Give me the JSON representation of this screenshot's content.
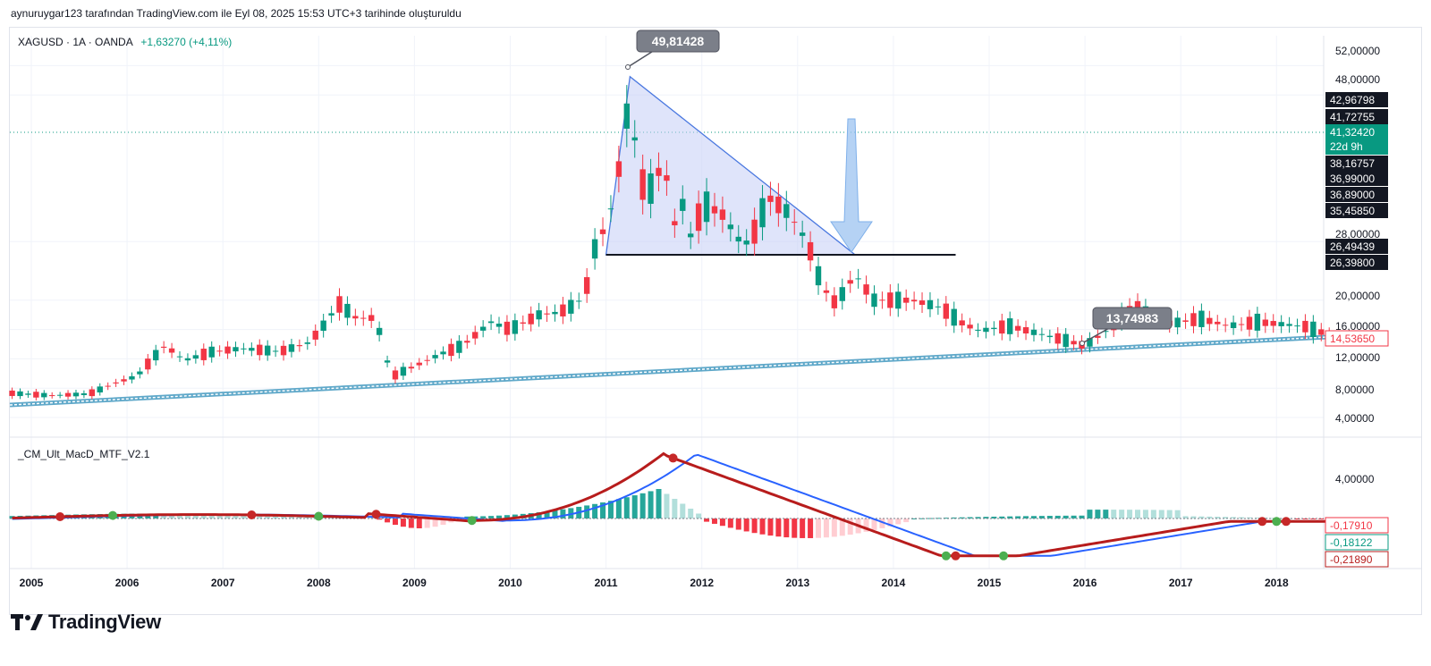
{
  "header": {
    "note": "aynuruygar123 tarafından TradingView.com ile Eyl 08, 2025 15:53 UTC+3 tarihinde oluşturuldu"
  },
  "legend": {
    "symbol": "XAGUSD · 1A · OANDA",
    "change": "+1,63270 (+4,11%)"
  },
  "indicator": {
    "name": "_CM_Ult_MacD_MTF_V2.1"
  },
  "brand": {
    "name": "TradingView"
  },
  "colors": {
    "up": "#089981",
    "down": "#f23645",
    "macd_up": "#4caf50",
    "macd_line": "#2962ff",
    "signal_line": "#b71c1c",
    "triangle_fill": "#c5cdf5",
    "triangle_line": "#4a78e0",
    "channel": "#5fa8c9",
    "arrow": "#9cc3f0"
  },
  "chart_data": [
    {
      "type": "candlestick",
      "title": "XAGUSD · 1A · OANDA",
      "x": [
        "2005",
        "2006",
        "2007",
        "2008",
        "2009",
        "2010",
        "2011",
        "2012",
        "2013",
        "2014",
        "2015",
        "2016",
        "2017",
        "2018"
      ],
      "ylim": [
        2,
        54
      ],
      "price_axis_ticks": [
        "52,00000",
        "48,00000",
        "28,00000",
        "20,00000",
        "16,00000",
        "12,00000",
        "8,00000",
        "4,00000"
      ],
      "price_tags": [
        {
          "label": "42,96798",
          "style": "dark"
        },
        {
          "label": "41,72755",
          "style": "dark"
        },
        {
          "label": "41,32420",
          "sub": "22d 9h",
          "style": "green"
        },
        {
          "label": "38,16757",
          "style": "dark"
        },
        {
          "label": "36,99000",
          "style": "dark"
        },
        {
          "label": "36,89000",
          "style": "dark"
        },
        {
          "label": "35,45850",
          "style": "dark"
        },
        {
          "label": "26,49439",
          "style": "dark"
        },
        {
          "label": "26,39800",
          "style": "dark"
        },
        {
          "label": "14,53650",
          "style": "outline-red"
        }
      ],
      "annotations": [
        {
          "label": "49,81428",
          "note": "high 2011"
        },
        {
          "label": "13,74983",
          "note": "low 2016"
        }
      ],
      "series_path": [
        [
          2004.8,
          7.3
        ],
        [
          2005.2,
          7.0
        ],
        [
          2005.6,
          7.2
        ],
        [
          2005.9,
          8.8
        ],
        [
          2006.1,
          9.6
        ],
        [
          2006.3,
          12.5
        ],
        [
          2006.4,
          13.8
        ],
        [
          2006.6,
          11.8
        ],
        [
          2006.9,
          13.0
        ],
        [
          2007.2,
          13.4
        ],
        [
          2007.6,
          13.0
        ],
        [
          2007.9,
          14.2
        ],
        [
          2008.1,
          17.3
        ],
        [
          2008.2,
          19.6
        ],
        [
          2008.4,
          17.5
        ],
        [
          2008.6,
          17.6
        ],
        [
          2008.7,
          12.0
        ],
        [
          2008.8,
          9.8
        ],
        [
          2009.0,
          11.0
        ],
        [
          2009.3,
          12.8
        ],
        [
          2009.5,
          13.8
        ],
        [
          2009.8,
          17.0
        ],
        [
          2010.0,
          16.0
        ],
        [
          2010.3,
          18.0
        ],
        [
          2010.5,
          18.3
        ],
        [
          2010.7,
          19.5
        ],
        [
          2010.8,
          22.0
        ],
        [
          2010.9,
          28.0
        ],
        [
          2011.0,
          30.0
        ],
        [
          2011.1,
          35.0
        ],
        [
          2011.25,
          48.0
        ],
        [
          2011.35,
          36.0
        ],
        [
          2011.5,
          35.0
        ],
        [
          2011.6,
          40.0
        ],
        [
          2011.7,
          30.0
        ],
        [
          2011.8,
          33.0
        ],
        [
          2011.9,
          28.0
        ],
        [
          2012.0,
          33.0
        ],
        [
          2012.2,
          32.0
        ],
        [
          2012.4,
          28.0
        ],
        [
          2012.5,
          27.8
        ],
        [
          2012.7,
          34.0
        ],
        [
          2012.9,
          32.0
        ],
        [
          2013.0,
          30.0
        ],
        [
          2013.1,
          28.0
        ],
        [
          2013.25,
          22.0
        ],
        [
          2013.4,
          19.5
        ],
        [
          2013.6,
          23.5
        ],
        [
          2013.8,
          20.0
        ],
        [
          2014.0,
          20.0
        ],
        [
          2014.2,
          20.0
        ],
        [
          2014.5,
          19.0
        ],
        [
          2014.7,
          17.0
        ],
        [
          2014.9,
          15.8
        ],
        [
          2015.2,
          16.5
        ],
        [
          2015.5,
          15.5
        ],
        [
          2015.8,
          14.5
        ],
        [
          2016.0,
          13.8
        ],
        [
          2016.3,
          16.5
        ],
        [
          2016.5,
          19.5
        ],
        [
          2016.7,
          17.5
        ],
        [
          2016.9,
          16.8
        ],
        [
          2017.2,
          17.5
        ],
        [
          2017.5,
          16.5
        ],
        [
          2017.8,
          17.0
        ],
        [
          2018.0,
          16.8
        ],
        [
          2018.3,
          16.4
        ],
        [
          2018.5,
          15.5
        ],
        [
          2018.6,
          14.5
        ]
      ]
    },
    {
      "type": "line",
      "title": "_CM_Ult_MacD_MTF_V2.1",
      "ylim": [
        -0.5,
        6
      ],
      "axis_ticks": [
        "4,00000"
      ],
      "value_tags": [
        {
          "label": "-0,17910",
          "style": "outline-red"
        },
        {
          "label": "-0,18122",
          "style": "outline-green"
        },
        {
          "label": "-0,21890",
          "style": "fill-red"
        }
      ]
    }
  ]
}
